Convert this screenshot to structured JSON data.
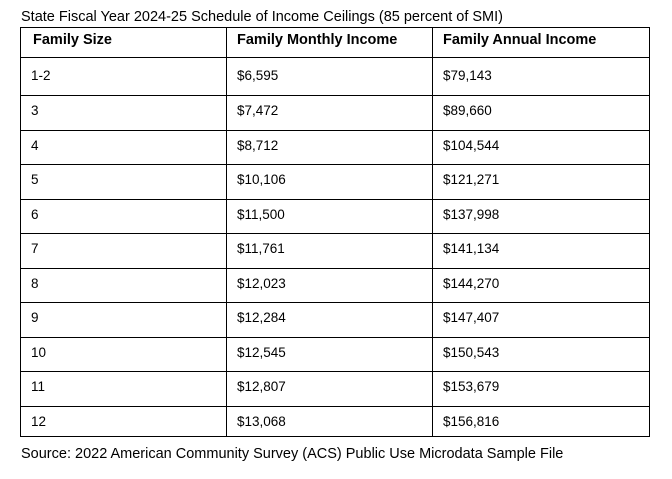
{
  "caption": "State Fiscal Year 2024-25 Schedule of Income Ceilings (85 percent of SMI)",
  "table": {
    "headers": [
      "Family Size",
      "Family Monthly Income",
      "Family Annual Income"
    ],
    "rows": [
      [
        "1-2",
        "$6,595",
        "$79,143"
      ],
      [
        "3",
        "$7,472",
        "$89,660"
      ],
      [
        "4",
        "$8,712",
        "$104,544"
      ],
      [
        "5",
        "$10,106",
        "$121,271"
      ],
      [
        "6",
        "$11,500",
        "$137,998"
      ],
      [
        "7",
        "$11,761",
        "$141,134"
      ],
      [
        "8",
        "$12,023",
        "$144,270"
      ],
      [
        "9",
        "$12,284",
        "$147,407"
      ],
      [
        "10",
        "$12,545",
        "$150,543"
      ],
      [
        "11",
        "$12,807",
        "$153,679"
      ],
      [
        "12",
        "$13,068",
        "$156,816"
      ]
    ]
  },
  "source": "Source: 2022 American Community Survey (ACS) Public Use Microdata Sample File"
}
